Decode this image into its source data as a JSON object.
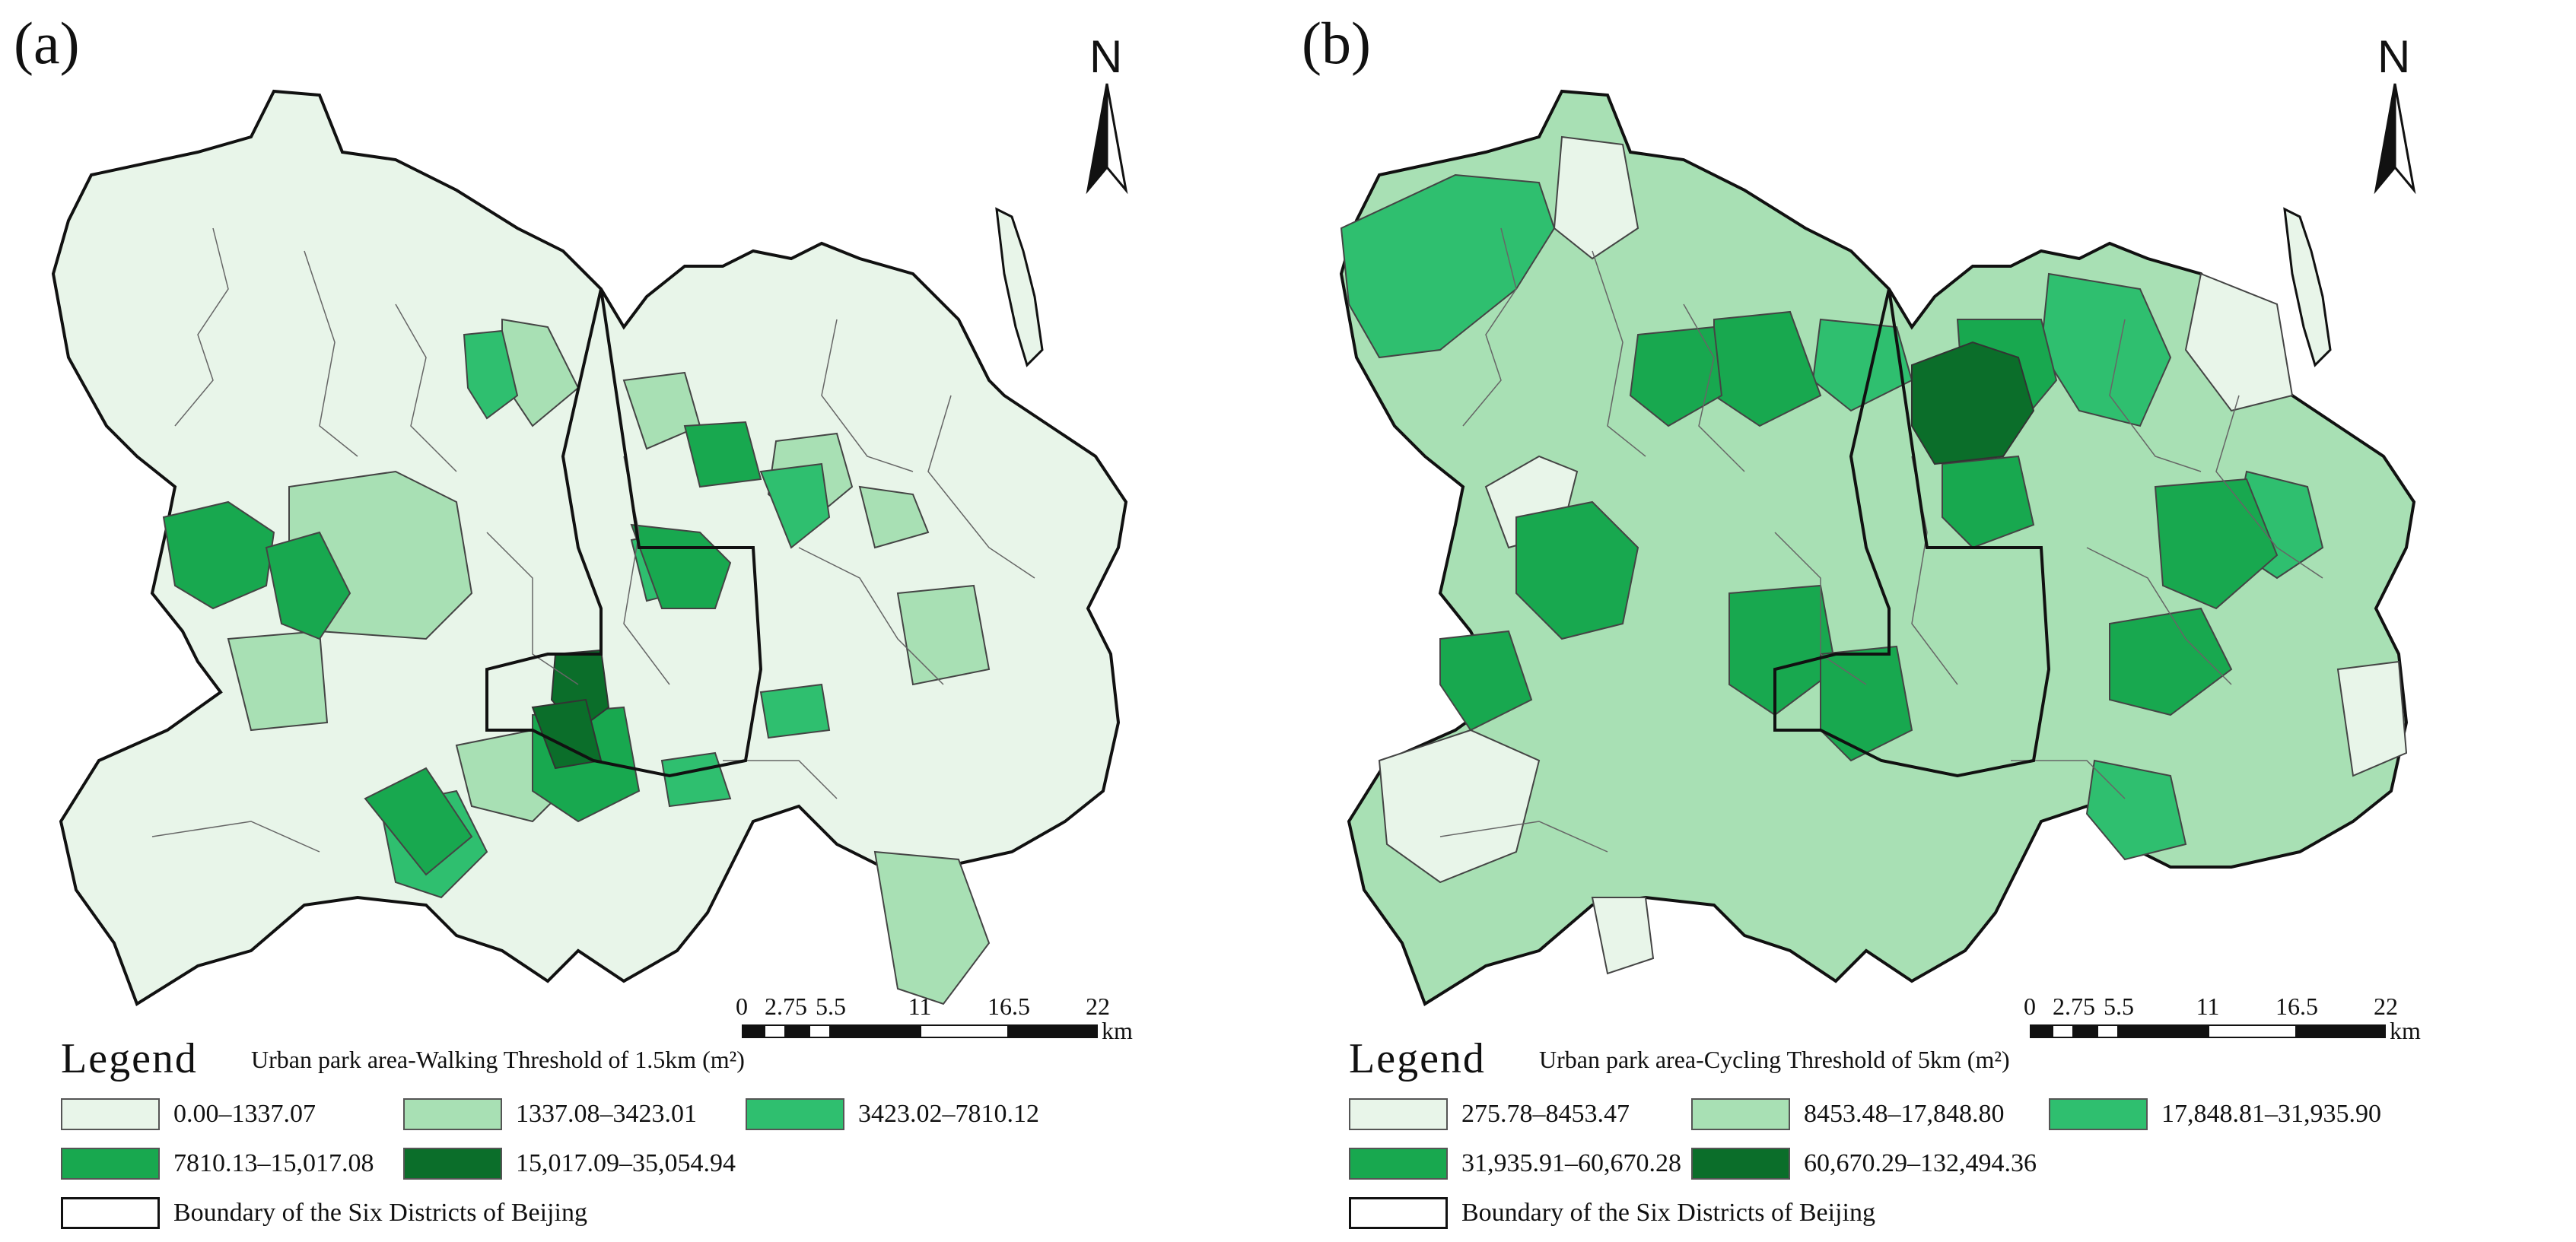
{
  "panels": [
    {
      "label": "(a)",
      "north": "N",
      "scale": {
        "ticks": [
          "0",
          "2.75",
          "5.5",
          "11",
          "16.5",
          "22"
        ],
        "unit": "km"
      },
      "legend_title": "Legend",
      "legend_subtitle": "Urban park area-Walking Threshold of 1.5km (m²)",
      "classes": [
        {
          "label": "0.00–1337.07",
          "color": "#e8f5e9"
        },
        {
          "label": "1337.08–3423.01",
          "color": "#a8e0b4"
        },
        {
          "label": "3423.02–7810.12",
          "color": "#2fbf6f"
        },
        {
          "label": "7810.13–15,017.08",
          "color": "#18a84f"
        },
        {
          "label": "15,017.09–35,054.94",
          "color": "#0b6e2a"
        }
      ],
      "boundary_label": "Boundary of the Six Districts of Beijing"
    },
    {
      "label": "(b)",
      "north": "N",
      "scale": {
        "ticks": [
          "0",
          "2.75",
          "5.5",
          "11",
          "16.5",
          "22"
        ],
        "unit": "km"
      },
      "legend_title": "Legend",
      "legend_subtitle": "Urban park area-Cycling Threshold of 5km (m²)",
      "classes": [
        {
          "label": "275.78–8453.47",
          "color": "#e8f5e9"
        },
        {
          "label": "8453.48–17,848.80",
          "color": "#a8e0b4"
        },
        {
          "label": "17,848.81–31,935.90",
          "color": "#2fbf6f"
        },
        {
          "label": "31,935.91–60,670.28",
          "color": "#18a84f"
        },
        {
          "label": "60,670.29–132,494.36",
          "color": "#0b6e2a"
        }
      ],
      "boundary_label": "Boundary of the Six Districts of Beijing"
    }
  ]
}
